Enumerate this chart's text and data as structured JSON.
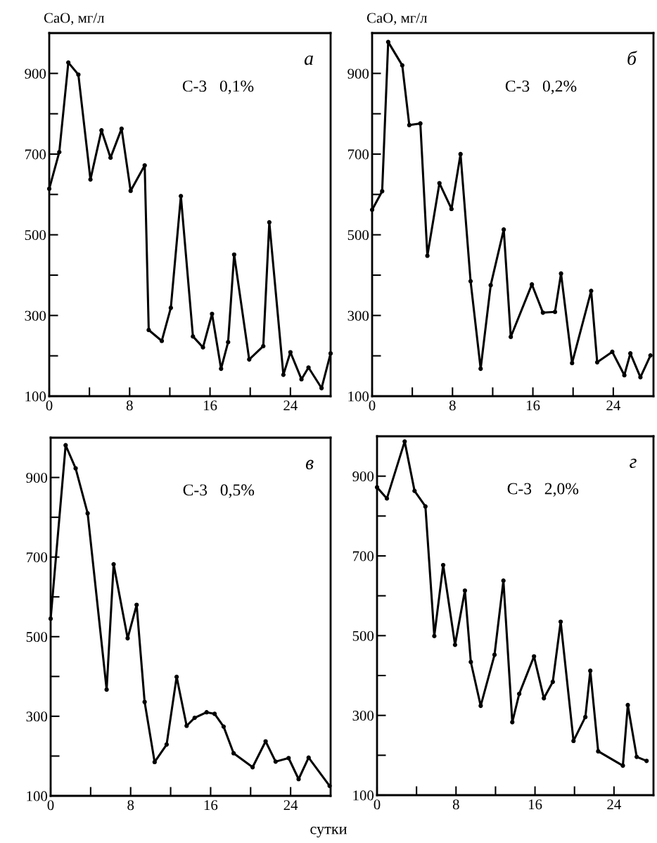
{
  "chart_data": [
    {
      "type": "line",
      "ylabel": "CaO, мг/л",
      "annotations": [
        "С-3   0,1%",
        "а"
      ],
      "xlim": [
        0,
        28
      ],
      "ylim": [
        100,
        1000
      ],
      "xticks": [
        0,
        {
          "value": 4,
          "label": null
        },
        8,
        {
          "value": 12,
          "label": null
        },
        16,
        {
          "value": 20,
          "label": null
        },
        24
      ],
      "yticks": [
        100,
        {
          "value": 200,
          "label": null
        },
        300,
        {
          "value": 400,
          "label": null
        },
        500,
        {
          "value": 600,
          "label": null
        },
        700,
        {
          "value": 800,
          "label": null
        },
        900
      ],
      "marker": "circle",
      "grid": false,
      "series": [
        {
          "color": "#000000",
          "x": [
            0,
            1.0,
            1.9,
            2.9,
            4.1,
            5.2,
            6.1,
            7.2,
            8.1,
            9.5,
            9.9,
            11.2,
            12.1,
            13.1,
            14.3,
            15.3,
            16.2,
            17.1,
            17.8,
            18.4,
            19.9,
            21.3,
            21.9,
            23.3,
            24.0,
            25.1,
            25.8,
            27.1,
            28
          ],
          "values": [
            614,
            705,
            927,
            897,
            637,
            759,
            691,
            763,
            609,
            672,
            264,
            237,
            319,
            596,
            248,
            221,
            304,
            168,
            234,
            451,
            191,
            224,
            531,
            153,
            209,
            142,
            171,
            120,
            206
          ]
        }
      ]
    },
    {
      "type": "line",
      "ylabel": "CaO, мг/л",
      "annotations": [
        "С-3   0,2%",
        "б"
      ],
      "xlim": [
        0,
        28
      ],
      "ylim": [
        100,
        1000
      ],
      "xticks": [
        0,
        {
          "value": 4,
          "label": null
        },
        8,
        {
          "value": 12,
          "label": null
        },
        16,
        {
          "value": 20,
          "label": null
        },
        24
      ],
      "yticks": [
        100,
        {
          "value": 200,
          "label": null
        },
        300,
        {
          "value": 400,
          "label": null
        },
        500,
        {
          "value": 600,
          "label": null
        },
        700,
        {
          "value": 800,
          "label": null
        },
        900
      ],
      "marker": "circle",
      "grid": false,
      "series": [
        {
          "color": "#000000",
          "x": [
            0,
            1.0,
            1.6,
            3.0,
            3.7,
            4.8,
            5.5,
            6.7,
            7.9,
            8.8,
            9.8,
            10.8,
            11.8,
            13.1,
            13.8,
            15.9,
            17.0,
            18.2,
            18.8,
            19.9,
            21.8,
            22.4,
            23.9,
            25.1,
            25.7,
            26.7,
            27.7
          ],
          "values": [
            562,
            608,
            978,
            920,
            772,
            776,
            448,
            628,
            564,
            700,
            385,
            168,
            375,
            513,
            247,
            377,
            307,
            309,
            404,
            182,
            361,
            184,
            210,
            152,
            206,
            147,
            201
          ]
        }
      ]
    },
    {
      "type": "line",
      "xlabel": "сутки",
      "annotations": [
        "С-3   0,5%",
        "в"
      ],
      "xlim": [
        0,
        28
      ],
      "ylim": [
        100,
        1000
      ],
      "xticks": [
        0,
        {
          "value": 4,
          "label": null
        },
        8,
        {
          "value": 12,
          "label": null
        },
        16,
        {
          "value": 20,
          "label": null
        },
        24
      ],
      "yticks": [
        100,
        {
          "value": 200,
          "label": null
        },
        300,
        {
          "value": 400,
          "label": null
        },
        500,
        {
          "value": 600,
          "label": null
        },
        700,
        {
          "value": 800,
          "label": null
        },
        900
      ],
      "marker": "circle",
      "grid": false,
      "series": [
        {
          "color": "#000000",
          "x": [
            0,
            1.5,
            2.5,
            3.7,
            5.6,
            6.3,
            7.7,
            8.6,
            9.4,
            10.4,
            11.6,
            12.6,
            13.6,
            14.4,
            15.6,
            16.4,
            17.3,
            18.3,
            20.2,
            21.5,
            22.5,
            23.8,
            24.8,
            25.8,
            27.9
          ],
          "values": [
            545,
            981,
            923,
            810,
            367,
            682,
            496,
            580,
            336,
            185,
            229,
            399,
            276,
            296,
            310,
            306,
            274,
            207,
            172,
            237,
            186,
            195,
            142,
            196,
            125
          ]
        }
      ]
    },
    {
      "type": "line",
      "annotations": [
        "С-3   2,0%",
        "г"
      ],
      "xlim": [
        0,
        28
      ],
      "ylim": [
        100,
        1000
      ],
      "xticks": [
        0,
        {
          "value": 4,
          "label": null
        },
        8,
        {
          "value": 12,
          "label": null
        },
        16,
        {
          "value": 20,
          "label": null
        },
        24
      ],
      "yticks": [
        100,
        {
          "value": 200,
          "label": null
        },
        300,
        {
          "value": 400,
          "label": null
        },
        500,
        {
          "value": 600,
          "label": null
        },
        700,
        {
          "value": 800,
          "label": null
        },
        900
      ],
      "marker": "circle",
      "grid": false,
      "series": [
        {
          "color": "#000000",
          "x": [
            0,
            1.0,
            2.8,
            3.8,
            4.9,
            5.8,
            6.7,
            7.9,
            8.9,
            9.5,
            10.5,
            11.9,
            12.8,
            13.7,
            14.4,
            15.9,
            16.9,
            17.8,
            18.6,
            19.9,
            21.1,
            21.6,
            22.4,
            24.9,
            25.4,
            26.3,
            27.3
          ],
          "values": [
            872,
            844,
            987,
            863,
            824,
            499,
            677,
            477,
            613,
            434,
            324,
            452,
            638,
            283,
            354,
            448,
            343,
            384,
            535,
            236,
            296,
            412,
            210,
            174,
            326,
            196,
            186
          ]
        }
      ]
    }
  ]
}
